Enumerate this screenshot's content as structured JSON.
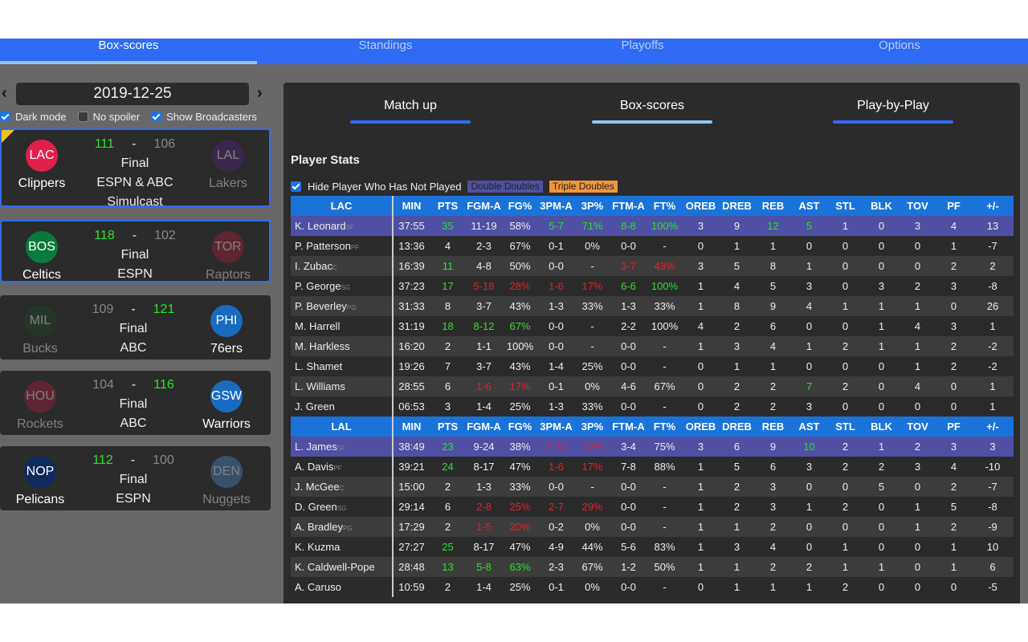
{
  "nav": {
    "tabs": [
      "Box-scores",
      "Standings",
      "Playoffs",
      "Options"
    ],
    "active": 0
  },
  "sidebar": {
    "date": "2019-12-25",
    "prev": "‹",
    "next": "›",
    "options": [
      {
        "label": "Dark mode",
        "checked": true
      },
      {
        "label": "No spoiler",
        "checked": false
      },
      {
        "label": "Show Broadcasters",
        "checked": true
      }
    ],
    "games": [
      {
        "home": {
          "abbr": "LAC",
          "name": "Clippers",
          "color": "#e0204a",
          "score": "111",
          "win": true
        },
        "away": {
          "abbr": "LAL",
          "name": "Lakers",
          "color": "#552583",
          "score": "106",
          "win": false
        },
        "status": "Final",
        "broadcast": "ESPN & ABC Simulcast",
        "selected": true,
        "flag": true
      },
      {
        "home": {
          "abbr": "BOS",
          "name": "Celtics",
          "color": "#0a7a3c",
          "score": "118",
          "win": true
        },
        "away": {
          "abbr": "TOR",
          "name": "Raptors",
          "color": "#b0203a",
          "score": "102",
          "win": false
        },
        "status": "Final",
        "broadcast": "ESPN",
        "selected": true,
        "flag": false
      },
      {
        "home": {
          "abbr": "MIL",
          "name": "Bucks",
          "color": "#1f4a2a",
          "score": "109",
          "win": false
        },
        "away": {
          "abbr": "PHI",
          "name": "76ers",
          "color": "#1a6bc0",
          "score": "121",
          "win": true
        },
        "status": "Final",
        "broadcast": "ABC",
        "selected": false,
        "flag": false
      },
      {
        "home": {
          "abbr": "HOU",
          "name": "Rockets",
          "color": "#b02040",
          "score": "104",
          "win": false
        },
        "away": {
          "abbr": "GSW",
          "name": "Warriors",
          "color": "#1a6bc0",
          "score": "116",
          "win": true
        },
        "status": "Final",
        "broadcast": "ABC",
        "selected": false,
        "flag": false
      },
      {
        "home": {
          "abbr": "NOP",
          "name": "Pelicans",
          "color": "#0c2a5c",
          "score": "112",
          "win": true
        },
        "away": {
          "abbr": "DEN",
          "name": "Nuggets",
          "color": "#4a8ad0",
          "score": "100",
          "win": false
        },
        "status": "Final",
        "broadcast": "ESPN",
        "selected": false,
        "flag": false
      }
    ]
  },
  "main": {
    "subtabs": [
      "Match up",
      "Box-scores",
      "Play-by-Play"
    ],
    "active_subtab": 1,
    "section_title": "Player Stats",
    "hide_label": "Hide Player Who Has Not Played",
    "hide_checked": true,
    "double_doubles": "Double Doubles",
    "triple_doubles": "Triple Doubles",
    "columns": [
      "MIN",
      "PTS",
      "FGM-A",
      "FG%",
      "3PM-A",
      "3P%",
      "FTM-A",
      "FT%",
      "OREB",
      "DREB",
      "REB",
      "AST",
      "STL",
      "BLK",
      "TOV",
      "PF",
      "+/-"
    ],
    "teams": [
      {
        "abbr": "LAC",
        "players": [
          {
            "name": "K. Leonard",
            "pos": "SF",
            "hl": true,
            "colors": ".g..gggg..gg.....",
            "stats": [
              "37:55",
              "35",
              "11-19",
              "58%",
              "5-7",
              "71%",
              "8-8",
              "100%",
              "3",
              "9",
              "12",
              "5",
              "1",
              "0",
              "3",
              "4",
              "13"
            ]
          },
          {
            "name": "P. Patterson",
            "pos": "PF",
            "colors": "",
            "stats": [
              "13:36",
              "4",
              "2-3",
              "67%",
              "0-1",
              "0%",
              "0-0",
              "-",
              "0",
              "1",
              "1",
              "0",
              "0",
              "0",
              "0",
              "1",
              "-7"
            ]
          },
          {
            "name": "I. Zubac",
            "pos": "C",
            "colors": ".g....rr.........",
            "stats": [
              "16:39",
              "11",
              "4-8",
              "50%",
              "0-0",
              "-",
              "3-7",
              "43%",
              "3",
              "5",
              "8",
              "1",
              "0",
              "0",
              "0",
              "2",
              "2"
            ]
          },
          {
            "name": "P. George",
            "pos": "SG",
            "colors": ".grrrrgg.........",
            "stats": [
              "37:23",
              "17",
              "5-18",
              "28%",
              "1-6",
              "17%",
              "6-6",
              "100%",
              "1",
              "4",
              "5",
              "3",
              "0",
              "3",
              "2",
              "3",
              "-8"
            ]
          },
          {
            "name": "P. Beverley",
            "pos": "PG",
            "colors": "",
            "stats": [
              "31:33",
              "8",
              "3-7",
              "43%",
              "1-3",
              "33%",
              "1-3",
              "33%",
              "1",
              "8",
              "9",
              "4",
              "1",
              "1",
              "1",
              "0",
              "26"
            ]
          },
          {
            "name": "M. Harrell",
            "pos": "",
            "colors": ".ggg.............",
            "stats": [
              "31:19",
              "18",
              "8-12",
              "67%",
              "0-0",
              "-",
              "2-2",
              "100%",
              "4",
              "2",
              "6",
              "0",
              "0",
              "1",
              "4",
              "3",
              "1"
            ]
          },
          {
            "name": "M. Harkless",
            "pos": "",
            "colors": "",
            "stats": [
              "16:20",
              "2",
              "1-1",
              "100%",
              "0-0",
              "-",
              "0-0",
              "-",
              "1",
              "3",
              "4",
              "1",
              "2",
              "1",
              "1",
              "2",
              "-2"
            ]
          },
          {
            "name": "L. Shamet",
            "pos": "",
            "colors": "",
            "stats": [
              "19:26",
              "7",
              "3-7",
              "43%",
              "1-4",
              "25%",
              "0-0",
              "-",
              "0",
              "1",
              "1",
              "0",
              "0",
              "0",
              "1",
              "2",
              "-2"
            ]
          },
          {
            "name": "L. Williams",
            "pos": "",
            "colors": "..rr.......g.....",
            "stats": [
              "28:55",
              "6",
              "1-6",
              "17%",
              "0-1",
              "0%",
              "4-6",
              "67%",
              "0",
              "2",
              "2",
              "7",
              "2",
              "0",
              "4",
              "0",
              "1"
            ]
          },
          {
            "name": "J. Green",
            "pos": "",
            "colors": "",
            "stats": [
              "06:53",
              "3",
              "1-4",
              "25%",
              "1-3",
              "33%",
              "0-0",
              "-",
              "0",
              "2",
              "2",
              "3",
              "0",
              "0",
              "0",
              "0",
              "1"
            ]
          }
        ]
      },
      {
        "abbr": "LAL",
        "players": [
          {
            "name": "L. James",
            "pos": "SF",
            "hl": true,
            "colors": ".g..rr.....g.....",
            "stats": [
              "38:49",
              "23",
              "9-24",
              "38%",
              "2-12",
              "17%",
              "3-4",
              "75%",
              "3",
              "6",
              "9",
              "10",
              "2",
              "1",
              "2",
              "3",
              "3"
            ]
          },
          {
            "name": "A. Davis",
            "pos": "PF",
            "colors": ".g..rr...........",
            "stats": [
              "39:21",
              "24",
              "8-17",
              "47%",
              "1-6",
              "17%",
              "7-8",
              "88%",
              "1",
              "5",
              "6",
              "3",
              "2",
              "2",
              "3",
              "4",
              "-10"
            ]
          },
          {
            "name": "J. McGee",
            "pos": "C",
            "colors": "",
            "stats": [
              "15:00",
              "2",
              "1-3",
              "33%",
              "0-0",
              "-",
              "0-0",
              "-",
              "1",
              "2",
              "3",
              "0",
              "0",
              "5",
              "0",
              "2",
              "-7"
            ]
          },
          {
            "name": "D. Green",
            "pos": "SG",
            "colors": "..rrrr...........",
            "stats": [
              "29:14",
              "6",
              "2-8",
              "25%",
              "2-7",
              "29%",
              "0-0",
              "-",
              "1",
              "2",
              "3",
              "1",
              "2",
              "0",
              "1",
              "5",
              "-8"
            ]
          },
          {
            "name": "A. Bradley",
            "pos": "PG",
            "colors": "..rr.............",
            "stats": [
              "17:29",
              "2",
              "1-5",
              "20%",
              "0-2",
              "0%",
              "0-0",
              "-",
              "1",
              "1",
              "2",
              "0",
              "0",
              "0",
              "1",
              "2",
              "-9"
            ]
          },
          {
            "name": "K. Kuzma",
            "pos": "",
            "colors": ".g...............",
            "stats": [
              "27:27",
              "25",
              "8-17",
              "47%",
              "4-9",
              "44%",
              "5-6",
              "83%",
              "1",
              "3",
              "4",
              "0",
              "1",
              "0",
              "0",
              "1",
              "10"
            ]
          },
          {
            "name": "K. Caldwell-Pope",
            "pos": "",
            "colors": ".ggg.............",
            "stats": [
              "28:48",
              "13",
              "5-8",
              "63%",
              "2-3",
              "67%",
              "1-2",
              "50%",
              "1",
              "1",
              "2",
              "2",
              "1",
              "1",
              "0",
              "1",
              "6"
            ]
          },
          {
            "name": "A. Caruso",
            "pos": "",
            "colors": "",
            "stats": [
              "10:59",
              "2",
              "1-4",
              "25%",
              "0-1",
              "0%",
              "0-0",
              "-",
              "0",
              "1",
              "1",
              "1",
              "2",
              "0",
              "0",
              "0",
              "-5"
            ]
          }
        ]
      }
    ]
  }
}
